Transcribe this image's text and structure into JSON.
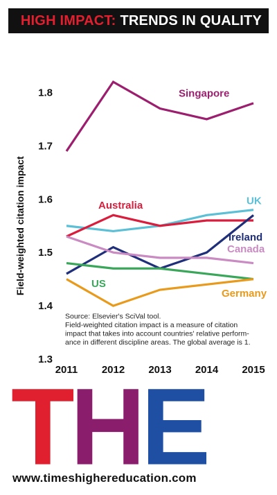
{
  "header": {
    "highlight": "HIGH IMPACT:",
    "rest": "TRENDS IN QUALITY"
  },
  "colors": {
    "banner_bg": "#111111",
    "highlight": "#e0202f",
    "logo_t": "#e0202f",
    "logo_h": "#8a1e6c",
    "logo_e": "#1f4fa3"
  },
  "chart_data": {
    "type": "line",
    "ylabel": "Field-weighted citation impact",
    "xlabel": "",
    "x": [
      "2011",
      "2012",
      "2013",
      "2014",
      "2015"
    ],
    "ylim": [
      1.3,
      1.85
    ],
    "yticks": [
      "1.3",
      "1.4",
      "1.5",
      "1.6",
      "1.7",
      "1.8"
    ],
    "series": [
      {
        "name": "Singapore",
        "color": "#9b1f6e",
        "values": [
          1.69,
          1.82,
          1.77,
          1.75,
          1.78
        ]
      },
      {
        "name": "UK",
        "color": "#5bbfd6",
        "values": [
          1.55,
          1.54,
          1.55,
          1.57,
          1.58
        ]
      },
      {
        "name": "Australia",
        "color": "#d81e3c",
        "values": [
          1.53,
          1.57,
          1.55,
          1.56,
          1.56
        ]
      },
      {
        "name": "Ireland",
        "color": "#1f2f7a",
        "values": [
          1.46,
          1.51,
          1.47,
          1.5,
          1.57
        ]
      },
      {
        "name": "Canada",
        "color": "#c98bc2",
        "values": [
          1.53,
          1.5,
          1.49,
          1.49,
          1.48
        ]
      },
      {
        "name": "US",
        "color": "#3aa65a",
        "values": [
          1.48,
          1.47,
          1.47,
          1.46,
          1.45
        ]
      },
      {
        "name": "Germany",
        "color": "#e89a1c",
        "values": [
          1.45,
          1.4,
          1.43,
          1.44,
          1.45
        ]
      }
    ],
    "annotations": [
      "Source: Elsevier's SciVal tool.",
      "Field-weighted citation impact is a measure of citation",
      "impact that takes into account countries' relative perform-",
      "ance in different discipline areas. The global average is 1."
    ]
  },
  "logo": {
    "t": "T",
    "h": "H",
    "e": "E"
  },
  "footer": {
    "website": "www.timeshighereducation.com"
  }
}
